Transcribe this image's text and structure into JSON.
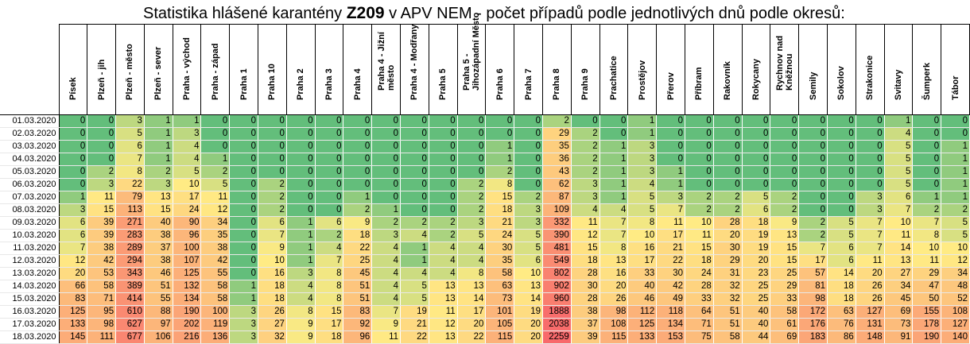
{
  "title": {
    "prefix": "Statistika hlášené karantény ",
    "code": "Z209",
    "suffix": " v APV NEM - počet případů podle jednotlivých dnů podle okresů:"
  },
  "colors": {
    "low": "#63BE7B",
    "mid": "#FFEB84",
    "high": "#F8696B",
    "border": "#000000"
  },
  "columns": [
    "Písek",
    "Plzeň - jih",
    "Plzeň - město",
    "Plzeň - sever",
    "Praha - východ",
    "Praha - západ",
    "Praha 1",
    "Praha 10",
    "Praha 2",
    "Praha 3",
    "Praha 4",
    "Praha 4 - Jižní město",
    "Praha 4 - Modřany",
    "Praha 5",
    "Praha 5 - Jihozápadní Město",
    "Praha 6",
    "Praha 7",
    "Praha 8",
    "Praha 9",
    "Prachatice",
    "Prostějov",
    "Přerov",
    "Příbram",
    "Rakovník",
    "Rokycany",
    "Rychnov nad Kněžnou",
    "Semily",
    "Sokolov",
    "Strakonice",
    "Svitavy",
    "Šumperk",
    "Tábor"
  ],
  "rows": [
    {
      "date": "01.03.2020",
      "values": [
        0,
        0,
        3,
        1,
        1,
        0,
        0,
        0,
        0,
        0,
        0,
        0,
        0,
        0,
        0,
        0,
        0,
        2,
        0,
        0,
        1,
        0,
        0,
        0,
        0,
        0,
        0,
        0,
        0,
        1,
        0,
        0
      ]
    },
    {
      "date": "02.03.2020",
      "values": [
        0,
        0,
        5,
        1,
        3,
        0,
        0,
        0,
        0,
        0,
        0,
        0,
        0,
        0,
        0,
        0,
        0,
        29,
        2,
        0,
        1,
        0,
        0,
        0,
        0,
        0,
        0,
        0,
        0,
        4,
        0,
        0
      ]
    },
    {
      "date": "03.03.2020",
      "values": [
        0,
        0,
        6,
        1,
        4,
        0,
        0,
        0,
        0,
        0,
        0,
        0,
        0,
        0,
        0,
        1,
        0,
        35,
        2,
        1,
        3,
        0,
        0,
        0,
        0,
        0,
        0,
        0,
        0,
        5,
        0,
        1
      ]
    },
    {
      "date": "04.03.2020",
      "values": [
        0,
        0,
        7,
        1,
        4,
        1,
        0,
        0,
        0,
        0,
        0,
        0,
        0,
        0,
        0,
        1,
        0,
        36,
        2,
        1,
        3,
        0,
        0,
        0,
        0,
        0,
        0,
        0,
        0,
        5,
        0,
        1
      ]
    },
    {
      "date": "05.03.2020",
      "values": [
        0,
        2,
        8,
        2,
        5,
        2,
        0,
        0,
        0,
        0,
        0,
        0,
        0,
        0,
        0,
        2,
        0,
        43,
        2,
        1,
        3,
        1,
        0,
        0,
        0,
        0,
        0,
        0,
        0,
        5,
        0,
        1
      ]
    },
    {
      "date": "06.03.2020",
      "values": [
        0,
        3,
        22,
        3,
        10,
        5,
        0,
        2,
        0,
        0,
        0,
        0,
        0,
        0,
        2,
        8,
        0,
        62,
        3,
        1,
        4,
        1,
        0,
        0,
        0,
        0,
        0,
        0,
        0,
        5,
        0,
        1
      ]
    },
    {
      "date": "07.03.2020",
      "values": [
        1,
        11,
        79,
        13,
        17,
        11,
        0,
        2,
        0,
        0,
        1,
        0,
        0,
        0,
        2,
        15,
        2,
        87,
        3,
        1,
        5,
        3,
        2,
        2,
        5,
        2,
        0,
        0,
        3,
        6,
        1,
        1
      ]
    },
    {
      "date": "08.03.2020",
      "values": [
        3,
        15,
        113,
        15,
        24,
        12,
        0,
        2,
        0,
        0,
        2,
        1,
        0,
        0,
        2,
        18,
        3,
        109,
        4,
        4,
        5,
        7,
        2,
        2,
        6,
        2,
        0,
        0,
        3,
        7,
        2,
        2
      ]
    },
    {
      "date": "09.03.2020",
      "values": [
        6,
        39,
        271,
        40,
        90,
        34,
        0,
        6,
        1,
        6,
        9,
        2,
        2,
        2,
        3,
        21,
        3,
        332,
        11,
        7,
        8,
        11,
        10,
        28,
        18,
        9,
        2,
        5,
        7,
        10,
        7,
        5
      ]
    },
    {
      "date": "10.03.2020",
      "values": [
        6,
        39,
        283,
        38,
        96,
        35,
        0,
        7,
        1,
        2,
        18,
        3,
        4,
        2,
        5,
        24,
        5,
        390,
        12,
        7,
        10,
        17,
        11,
        20,
        19,
        13,
        2,
        5,
        7,
        11,
        8,
        5
      ]
    },
    {
      "date": "11.03.2020",
      "values": [
        7,
        38,
        289,
        37,
        100,
        38,
        0,
        9,
        1,
        4,
        22,
        4,
        1,
        4,
        4,
        30,
        5,
        481,
        15,
        8,
        16,
        21,
        15,
        30,
        19,
        15,
        7,
        6,
        7,
        14,
        10,
        10
      ]
    },
    {
      "date": "12.03.2020",
      "values": [
        12,
        42,
        294,
        38,
        107,
        42,
        0,
        10,
        1,
        7,
        25,
        4,
        1,
        4,
        4,
        35,
        6,
        549,
        18,
        13,
        17,
        22,
        18,
        29,
        20,
        15,
        17,
        6,
        11,
        13,
        11,
        12
      ]
    },
    {
      "date": "13.03.2020",
      "values": [
        20,
        53,
        343,
        46,
        125,
        55,
        0,
        16,
        3,
        8,
        45,
        4,
        4,
        4,
        8,
        58,
        10,
        802,
        28,
        16,
        33,
        30,
        24,
        31,
        23,
        25,
        57,
        14,
        20,
        27,
        29,
        34
      ]
    },
    {
      "date": "14.03.2020",
      "values": [
        66,
        58,
        389,
        51,
        132,
        58,
        1,
        18,
        4,
        8,
        51,
        4,
        5,
        13,
        13,
        63,
        13,
        902,
        30,
        20,
        40,
        42,
        28,
        32,
        25,
        29,
        81,
        18,
        26,
        34,
        47,
        48
      ]
    },
    {
      "date": "15.03.2020",
      "values": [
        83,
        71,
        414,
        55,
        134,
        58,
        1,
        18,
        4,
        8,
        51,
        4,
        5,
        13,
        14,
        73,
        14,
        960,
        28,
        26,
        46,
        49,
        33,
        32,
        25,
        33,
        98,
        18,
        26,
        45,
        50,
        52
      ]
    },
    {
      "date": "16.03.2020",
      "values": [
        125,
        95,
        610,
        88,
        190,
        100,
        3,
        26,
        8,
        15,
        83,
        7,
        19,
        11,
        17,
        101,
        19,
        1888,
        38,
        98,
        112,
        118,
        64,
        51,
        40,
        58,
        172,
        63,
        127,
        69,
        155,
        108
      ]
    },
    {
      "date": "17.03.2020",
      "values": [
        133,
        98,
        627,
        97,
        202,
        119,
        3,
        27,
        9,
        17,
        92,
        9,
        21,
        12,
        20,
        105,
        20,
        2038,
        37,
        108,
        125,
        134,
        71,
        51,
        40,
        61,
        176,
        76,
        131,
        73,
        178,
        127
      ]
    },
    {
      "date": "18.03.2020",
      "values": [
        145,
        111,
        677,
        106,
        216,
        136,
        3,
        32,
        9,
        18,
        96,
        11,
        22,
        13,
        22,
        115,
        20,
        2259,
        39,
        115,
        133,
        153,
        75,
        58,
        44,
        69,
        183,
        86,
        148,
        91,
        190,
        140
      ]
    }
  ]
}
